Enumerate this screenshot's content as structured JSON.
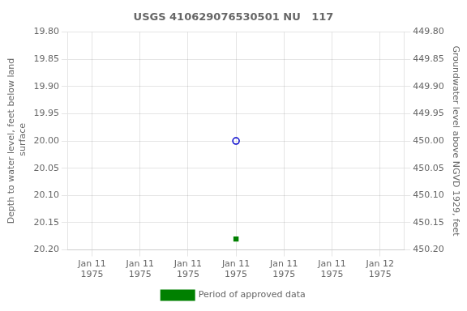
{
  "chart_data": {
    "type": "scatter",
    "title": "USGS 410629076530501 NU   117",
    "categories": [
      "Jan 11\n1975",
      "Jan 11\n1975",
      "Jan 11\n1975",
      "Jan 11\n1975",
      "Jan 11\n1975",
      "Jan 11\n1975",
      "Jan 12\n1975"
    ],
    "series": [
      {
        "color": "#0000cc",
        "marker": "circle",
        "values": [
          null,
          null,
          null,
          20.0,
          null,
          null,
          null
        ]
      },
      {
        "name": "Period of approved data",
        "color": "#008000",
        "marker": "square",
        "values": [
          null,
          null,
          null,
          20.18,
          null,
          null,
          null
        ]
      }
    ],
    "ylabel": "Depth to water level, feet below land\n surface",
    "y2label": "Groundwater level above NGVD 1929, feet",
    "ylim": [
      20.2,
      19.8
    ],
    "yticks": [
      {
        "value": 19.8,
        "label": "19.80"
      },
      {
        "value": 19.85,
        "label": "19.85"
      },
      {
        "value": 19.9,
        "label": "19.90"
      },
      {
        "value": 19.95,
        "label": "19.95"
      },
      {
        "value": 20,
        "label": "20.00"
      },
      {
        "value": 20.05,
        "label": "20.05"
      },
      {
        "value": 20.1,
        "label": "20.10"
      },
      {
        "value": 20.15,
        "label": "20.15"
      },
      {
        "value": 20.2,
        "label": "20.20"
      }
    ],
    "y2lim": [
      450.2,
      449.8
    ],
    "y2ticks": [
      {
        "value": 449.8,
        "label": "449.80"
      },
      {
        "value": 449.85,
        "label": "449.85"
      },
      {
        "value": 449.9,
        "label": "449.90"
      },
      {
        "value": 449.95,
        "label": "449.95"
      },
      {
        "value": 450,
        "label": "450.00"
      },
      {
        "value": 450.05,
        "label": "450.05"
      },
      {
        "value": 450.1,
        "label": "450.10"
      },
      {
        "value": 450.15,
        "label": "450.15"
      },
      {
        "value": 450.2,
        "label": "450.20"
      }
    ],
    "grid": true,
    "legend": "bottom"
  }
}
